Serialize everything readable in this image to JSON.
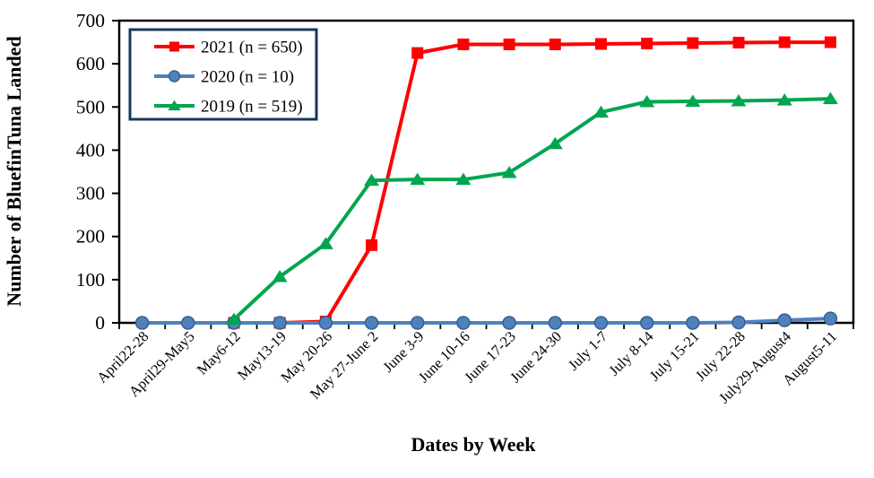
{
  "chart_data": {
    "type": "line",
    "title": "",
    "xlabel": "Dates by Week",
    "ylabel": "Number of BluefinTuna Landed",
    "ylim": [
      0,
      700
    ],
    "yticks": [
      0,
      100,
      200,
      300,
      400,
      500,
      600,
      700
    ],
    "grid": false,
    "legend_position": "top-left-inside",
    "legend_border_color": "#17375E",
    "axis_color": "#000000",
    "categories": [
      "April22-28",
      "April29-May5",
      "May6-12",
      "May13-19",
      "May 20-26",
      "May 27-June 2",
      "June 3-9",
      "June 10-16",
      "June 17-23",
      "June 24-30",
      "July 1-7",
      "July 8-14",
      "July 15-21",
      "July 22-28",
      "July29-August4",
      "August5-11"
    ],
    "series": [
      {
        "id": "2021",
        "name": "2021 (n = 650)",
        "color": "#FF0000",
        "marker": "square",
        "values": [
          null,
          null,
          0,
          0,
          3,
          180,
          625,
          645,
          645,
          645,
          646,
          647,
          648,
          649,
          650,
          650
        ]
      },
      {
        "id": "2020",
        "name": "2020 (n = 10)",
        "color": "#4F81BD",
        "marker": "circle",
        "marker_border": "#36618E",
        "values": [
          0,
          0,
          0,
          0,
          0,
          0,
          0,
          0,
          0,
          0,
          0,
          0,
          0,
          1,
          6,
          10
        ]
      },
      {
        "id": "2019",
        "name": "2019 (n = 519)",
        "color": "#00A550",
        "marker": "triangle",
        "values": [
          null,
          null,
          8,
          107,
          183,
          330,
          332,
          332,
          348,
          415,
          488,
          512,
          513,
          514,
          516,
          519
        ]
      }
    ]
  }
}
